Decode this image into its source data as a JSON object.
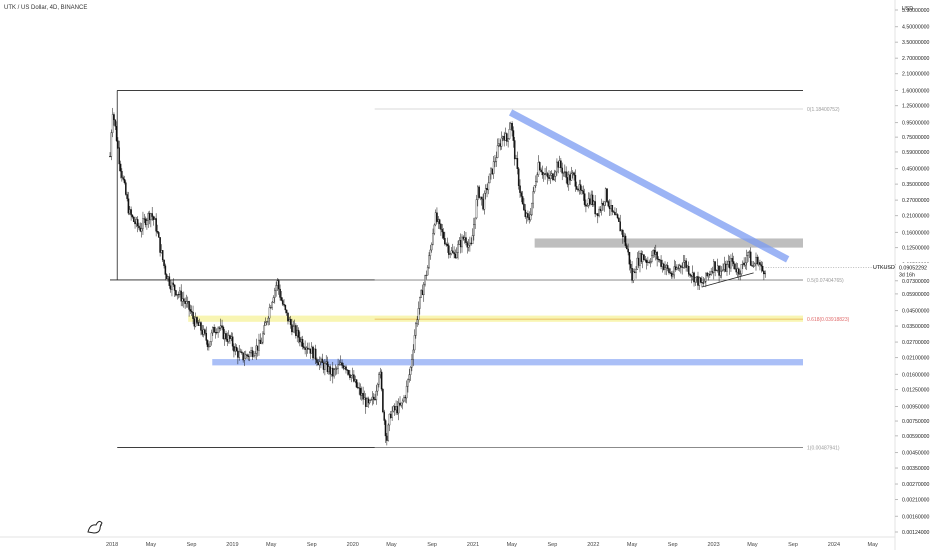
{
  "title": "UTK / US Dollar, 4D, BINANCE",
  "chart_data": {
    "type": "candlestick",
    "symbol": "UTKUSD",
    "interval": "4D",
    "exchange": "BINANCE",
    "currency": "USD",
    "log_scale": true,
    "grid": false,
    "last_price": "0.09052292",
    "countdown": "3d 16h",
    "y_ticks": [
      "5.90000000",
      "4.50000000",
      "3.50000000",
      "2.70000000",
      "2.10000000",
      "1.60000000",
      "1.25000000",
      "0.95000000",
      "0.75000000",
      "0.59000000",
      "0.45000000",
      "0.35000000",
      "0.27000000",
      "0.21000000",
      "0.16000000",
      "0.12500000",
      "0.09500000",
      "0.07300000",
      "0.05900000",
      "0.04500000",
      "0.03500000",
      "0.02700000",
      "0.02100000",
      "0.01600000",
      "0.01250000",
      "0.00950000",
      "0.00750000",
      "0.00590000",
      "0.00450000",
      "0.00350000",
      "0.00270000",
      "0.00210000",
      "0.00160000",
      "0.00124000"
    ],
    "y_tick_values": [
      5.9,
      4.5,
      3.5,
      2.7,
      2.1,
      1.6,
      1.25,
      0.95,
      0.75,
      0.59,
      0.45,
      0.35,
      0.27,
      0.21,
      0.16,
      0.125,
      0.095,
      0.073,
      0.059,
      0.045,
      0.035,
      0.027,
      0.021,
      0.016,
      0.0125,
      0.0095,
      0.0075,
      0.0059,
      0.0045,
      0.0035,
      0.0027,
      0.0021,
      0.0016,
      0.00124
    ],
    "x_ticks": [
      {
        "label": "2018",
        "t": 2018.0
      },
      {
        "label": "May",
        "t": 2018.33
      },
      {
        "label": "Sep",
        "t": 2018.67
      },
      {
        "label": "2019",
        "t": 2019.0
      },
      {
        "label": "May",
        "t": 2019.33
      },
      {
        "label": "Sep",
        "t": 2019.67
      },
      {
        "label": "2020",
        "t": 2020.0
      },
      {
        "label": "May",
        "t": 2020.33
      },
      {
        "label": "Sep",
        "t": 2020.67
      },
      {
        "label": "2021",
        "t": 2021.0
      },
      {
        "label": "May",
        "t": 2021.33
      },
      {
        "label": "Sep",
        "t": 2021.67
      },
      {
        "label": "2022",
        "t": 2022.0
      },
      {
        "label": "May",
        "t": 2022.33
      },
      {
        "label": "Sep",
        "t": 2022.67
      },
      {
        "label": "2023",
        "t": 2023.0
      },
      {
        "label": "May",
        "t": 2023.33
      },
      {
        "label": "Sep",
        "t": 2023.67
      },
      {
        "label": "2024",
        "t": 2024.0
      },
      {
        "label": "May",
        "t": 2024.33
      }
    ],
    "x_range": [
      2017.95,
      2024.5
    ],
    "y_range": [
      0.00115,
      7.0
    ],
    "price_path": [
      [
        2018.0,
        0.55
      ],
      [
        2018.02,
        1.2
      ],
      [
        2018.05,
        0.8
      ],
      [
        2018.08,
        0.5
      ],
      [
        2018.12,
        0.33
      ],
      [
        2018.16,
        0.22
      ],
      [
        2018.2,
        0.19
      ],
      [
        2018.25,
        0.17
      ],
      [
        2018.3,
        0.2
      ],
      [
        2018.34,
        0.22
      ],
      [
        2018.38,
        0.18
      ],
      [
        2018.42,
        0.12
      ],
      [
        2018.46,
        0.085
      ],
      [
        2018.5,
        0.07
      ],
      [
        2018.55,
        0.062
      ],
      [
        2018.6,
        0.055
      ],
      [
        2018.66,
        0.046
      ],
      [
        2018.7,
        0.038
      ],
      [
        2018.76,
        0.033
      ],
      [
        2018.82,
        0.026
      ],
      [
        2018.86,
        0.033
      ],
      [
        2018.9,
        0.035
      ],
      [
        2018.95,
        0.03
      ],
      [
        2019.0,
        0.028
      ],
      [
        2019.05,
        0.023
      ],
      [
        2019.1,
        0.021
      ],
      [
        2019.15,
        0.022
      ],
      [
        2019.2,
        0.024
      ],
      [
        2019.25,
        0.026
      ],
      [
        2019.28,
        0.032
      ],
      [
        2019.32,
        0.045
      ],
      [
        2019.36,
        0.06
      ],
      [
        2019.39,
        0.072
      ],
      [
        2019.42,
        0.055
      ],
      [
        2019.46,
        0.043
      ],
      [
        2019.5,
        0.036
      ],
      [
        2019.55,
        0.031
      ],
      [
        2019.6,
        0.027
      ],
      [
        2019.65,
        0.025
      ],
      [
        2019.7,
        0.022
      ],
      [
        2019.75,
        0.019
      ],
      [
        2019.8,
        0.018
      ],
      [
        2019.85,
        0.016
      ],
      [
        2019.9,
        0.018
      ],
      [
        2019.95,
        0.019
      ],
      [
        2020.0,
        0.016
      ],
      [
        2020.05,
        0.013
      ],
      [
        2020.1,
        0.011
      ],
      [
        2020.15,
        0.0095
      ],
      [
        2020.2,
        0.011
      ],
      [
        2020.24,
        0.018
      ],
      [
        2020.27,
        0.009
      ],
      [
        2020.3,
        0.0055
      ],
      [
        2020.33,
        0.0085
      ],
      [
        2020.37,
        0.009
      ],
      [
        2020.42,
        0.0095
      ],
      [
        2020.46,
        0.012
      ],
      [
        2020.5,
        0.018
      ],
      [
        2020.53,
        0.03
      ],
      [
        2020.56,
        0.045
      ],
      [
        2020.6,
        0.065
      ],
      [
        2020.64,
        0.09
      ],
      [
        2020.67,
        0.13
      ],
      [
        2020.7,
        0.21
      ],
      [
        2020.74,
        0.17
      ],
      [
        2020.78,
        0.145
      ],
      [
        2020.82,
        0.12
      ],
      [
        2020.86,
        0.11
      ],
      [
        2020.9,
        0.13
      ],
      [
        2020.95,
        0.15
      ],
      [
        2021.0,
        0.12
      ],
      [
        2021.03,
        0.2
      ],
      [
        2021.06,
        0.32
      ],
      [
        2021.1,
        0.25
      ],
      [
        2021.14,
        0.35
      ],
      [
        2021.18,
        0.45
      ],
      [
        2021.22,
        0.6
      ],
      [
        2021.27,
        0.8
      ],
      [
        2021.3,
        0.7
      ],
      [
        2021.33,
        1.0
      ],
      [
        2021.36,
        0.6
      ],
      [
        2021.4,
        0.35
      ],
      [
        2021.44,
        0.22
      ],
      [
        2021.48,
        0.19
      ],
      [
        2021.52,
        0.3
      ],
      [
        2021.56,
        0.5
      ],
      [
        2021.6,
        0.42
      ],
      [
        2021.64,
        0.38
      ],
      [
        2021.68,
        0.4
      ],
      [
        2021.72,
        0.5
      ],
      [
        2021.76,
        0.44
      ],
      [
        2021.8,
        0.38
      ],
      [
        2021.85,
        0.4
      ],
      [
        2021.9,
        0.32
      ],
      [
        2021.95,
        0.26
      ],
      [
        2022.0,
        0.28
      ],
      [
        2022.04,
        0.22
      ],
      [
        2022.08,
        0.24
      ],
      [
        2022.12,
        0.3
      ],
      [
        2022.17,
        0.22
      ],
      [
        2022.22,
        0.19
      ],
      [
        2022.27,
        0.15
      ],
      [
        2022.31,
        0.11
      ],
      [
        2022.34,
        0.075
      ],
      [
        2022.37,
        0.095
      ],
      [
        2022.42,
        0.11
      ],
      [
        2022.47,
        0.1
      ],
      [
        2022.52,
        0.115
      ],
      [
        2022.57,
        0.1
      ],
      [
        2022.62,
        0.09
      ],
      [
        2022.67,
        0.08
      ],
      [
        2022.72,
        0.09
      ],
      [
        2022.77,
        0.1
      ],
      [
        2022.82,
        0.085
      ],
      [
        2022.87,
        0.075
      ],
      [
        2022.92,
        0.068
      ],
      [
        2022.97,
        0.08
      ],
      [
        2023.02,
        0.095
      ],
      [
        2023.07,
        0.085
      ],
      [
        2023.12,
        0.09
      ],
      [
        2023.17,
        0.1
      ],
      [
        2023.22,
        0.085
      ],
      [
        2023.27,
        0.095
      ],
      [
        2023.3,
        0.12
      ],
      [
        2023.34,
        0.09
      ],
      [
        2023.38,
        0.105
      ],
      [
        2023.42,
        0.085
      ],
      [
        2023.45,
        0.0905
      ]
    ],
    "annotations": {
      "fib_levels": [
        {
          "label": "0(1.18400752)",
          "value": 1.184
        },
        {
          "label": "0.5(0.07404765)",
          "value": 0.074
        },
        {
          "label": "0.618(0.03918823)",
          "value": 0.0392
        },
        {
          "label": "1(0.00487941)",
          "value": 0.00488
        }
      ],
      "bands": [
        {
          "low": 0.0375,
          "high": 0.0415,
          "color": "#f5f08a",
          "start": 2018.65
        },
        {
          "low": 0.0185,
          "high": 0.0205,
          "color": "#7c9cf2",
          "start": 2018.85
        },
        {
          "low": 0.125,
          "high": 0.145,
          "color": "#9b9b9b",
          "start": 2021.53
        }
      ],
      "hlines": [
        {
          "value": 1.6,
          "start": 2018.06
        },
        {
          "value": 0.074,
          "start": 2018.0
        },
        {
          "value": 0.00488,
          "start": 2018.06
        }
      ],
      "trendline": {
        "from": [
          2021.33,
          1.12
        ],
        "to": [
          2023.55,
          0.1
        ],
        "color": "#7c9cf2"
      },
      "support_line": {
        "from": [
          2022.92,
          0.066
        ],
        "to": [
          2023.35,
          0.083
        ]
      }
    },
    "title": "UTK / US Dollar, 4D, BINANCE",
    "xlabel": "",
    "ylabel": "USD"
  },
  "colors": {
    "candle": "#111111",
    "trend": "#7c9cf2",
    "yellow_band": "#f5f08a",
    "blue_band": "#7c9cf2",
    "grey_band": "#9b9b9b",
    "fib_red": "#e06a6a"
  }
}
